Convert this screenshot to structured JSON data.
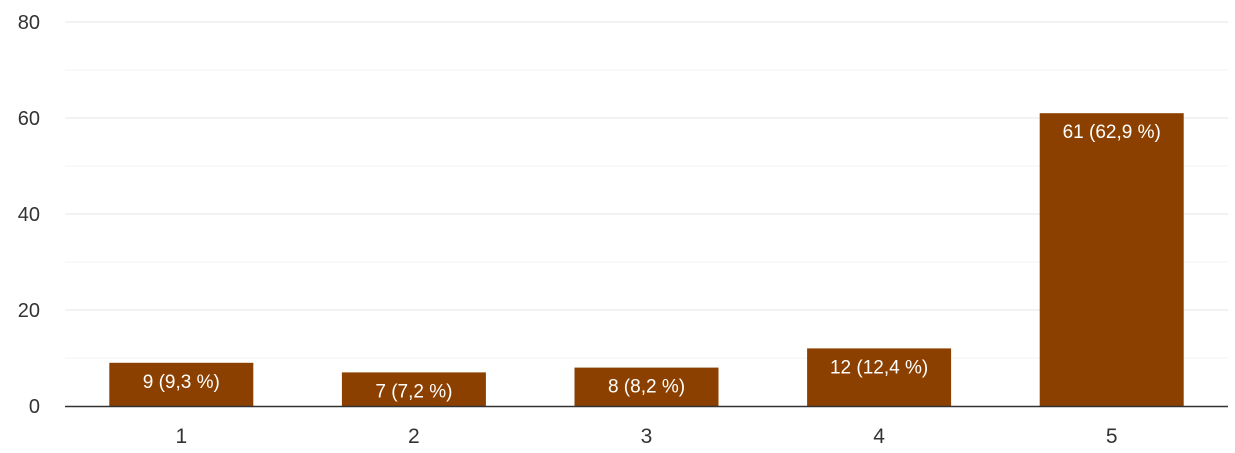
{
  "chart_data": {
    "type": "bar",
    "categories": [
      "1",
      "2",
      "3",
      "4",
      "5"
    ],
    "values": [
      9,
      7,
      8,
      12,
      61
    ],
    "data_labels": [
      "9 (9,3 %)",
      "7 (7,2 %)",
      "8 (8,2 %)",
      "12 (12,4 %)",
      "61 (62,9 %)"
    ],
    "y_ticks": [
      "0",
      "20",
      "40",
      "60",
      "80"
    ],
    "ylim": [
      0,
      80
    ],
    "grid": true,
    "legend": "none",
    "title": "",
    "xlabel": "",
    "ylabel": "",
    "colors": {
      "bar": "#8B4000",
      "bar_label": "#ffffff",
      "grid_major": "#e6e6e6",
      "grid_minor": "#f3f3f3",
      "axis": "#333333",
      "tick_text": "#333333"
    }
  }
}
